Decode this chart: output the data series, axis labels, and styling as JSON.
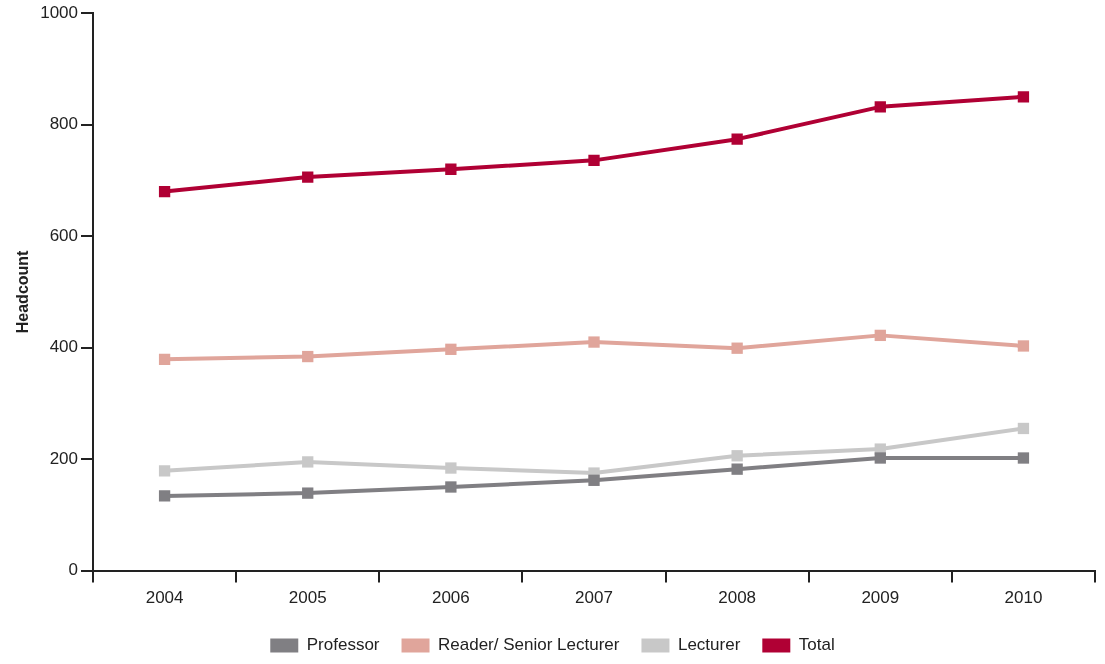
{
  "chart_data": {
    "type": "line",
    "ylabel": "Headcount",
    "categories": [
      "2004",
      "2005",
      "2006",
      "2007",
      "2008",
      "2009",
      "2010"
    ],
    "ylim": [
      0,
      1000
    ],
    "yticks": [
      0,
      200,
      400,
      600,
      800,
      1000
    ],
    "grid": false,
    "legend": "bottom",
    "marker": "square",
    "line_style": "solid",
    "series": [
      {
        "name": "Professor",
        "color": "#807f83",
        "values": [
          134,
          139,
          150,
          162,
          182,
          202,
          202
        ]
      },
      {
        "name": "Reader/ Senior Lecturer",
        "color": "#e0a59b",
        "values": [
          379,
          384,
          397,
          410,
          399,
          422,
          403
        ]
      },
      {
        "name": "Lecturer",
        "color": "#c8c8c8",
        "values": [
          179,
          195,
          184,
          175,
          206,
          218,
          255
        ]
      },
      {
        "name": "Total",
        "color": "#b00034",
        "values": [
          680,
          706,
          720,
          736,
          774,
          832,
          850
        ]
      }
    ]
  }
}
